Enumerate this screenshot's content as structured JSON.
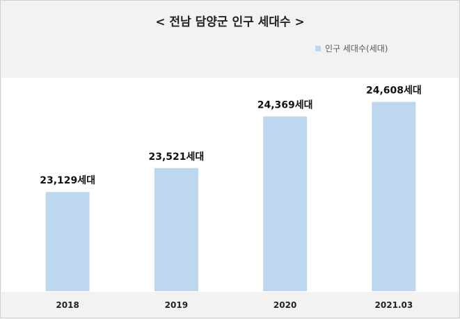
{
  "chart_data": {
    "type": "bar",
    "title": "< 전남 담양군 인구 세대수 >",
    "categories": [
      "2018",
      "2019",
      "2020",
      "2021.03"
    ],
    "series": [
      {
        "name": "인구 세대수(세대)",
        "values": [
          23129,
          23521,
          24369,
          24608
        ],
        "labels": [
          "23,129세대",
          "23,521세대",
          "24,369세대",
          "24,608세대"
        ]
      }
    ],
    "xlabel": "",
    "ylabel": "",
    "ylim": [
      21500,
      24900
    ],
    "grid": false,
    "legend_position": "top-right"
  },
  "colors": {
    "bar": "#bdd7ee",
    "background": "#f2f2f2",
    "plot_background": "#ffffff"
  }
}
